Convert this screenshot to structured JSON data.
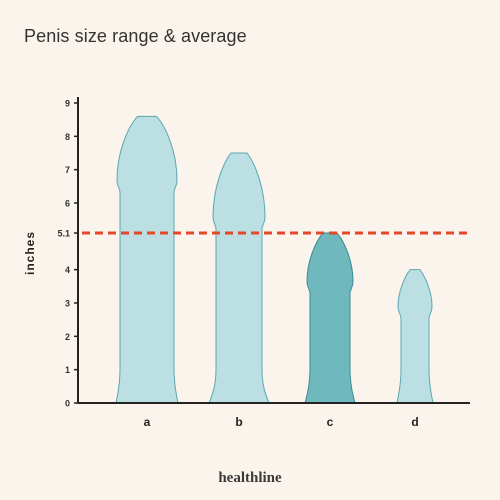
{
  "title": "Penis size range & average",
  "brand": "healthline",
  "chart_data": {
    "type": "bar",
    "categories": [
      "a",
      "b",
      "c",
      "d"
    ],
    "values": [
      8.6,
      7.5,
      5.1,
      4.0
    ],
    "ylabel": "inches",
    "ylim": [
      0,
      9
    ],
    "yticks": [
      "0",
      "1",
      "2",
      "3",
      "4",
      "5.1",
      "6",
      "7",
      "8",
      "9"
    ],
    "ytick_values": [
      0,
      1,
      2,
      3,
      4,
      5.1,
      6,
      7,
      8,
      9
    ],
    "average_line": {
      "value": 5.1,
      "color": "#e5472b",
      "style": "dashed"
    },
    "colors": {
      "default_fill": "#bcdfe3",
      "default_stroke": "#5aa8b0",
      "highlight_fill": "#6fb8be",
      "highlight_stroke": "#3a8c94",
      "highlight_category": "c"
    },
    "grid": false
  }
}
